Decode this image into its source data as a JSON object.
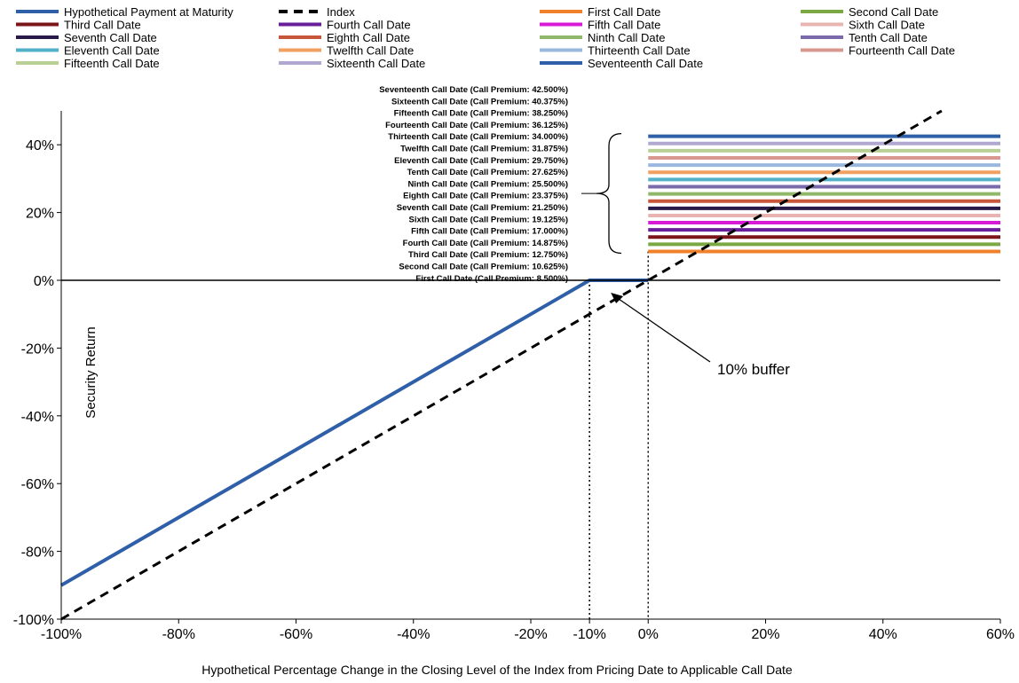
{
  "chart_data": {
    "type": "line",
    "title": "",
    "xlabel": "Hypothetical Percentage Change in the Closing Level of the Index from Pricing Date to Applicable Call Date",
    "ylabel": "Security Return",
    "xlim": [
      -100,
      60
    ],
    "ylim": [
      -100,
      50
    ],
    "x_ticks": [
      {
        "value": -100,
        "label": "-100%"
      },
      {
        "value": -80,
        "label": "-80%"
      },
      {
        "value": -60,
        "label": "-60%"
      },
      {
        "value": -40,
        "label": "-40%"
      },
      {
        "value": -20,
        "label": "-20%"
      },
      {
        "value": -10,
        "label": "-10%"
      },
      {
        "value": 0,
        "label": "0%"
      },
      {
        "value": 20,
        "label": "20%"
      },
      {
        "value": 40,
        "label": "40%"
      },
      {
        "value": 60,
        "label": "60%"
      }
    ],
    "y_ticks": [
      {
        "value": 40,
        "label": "40%"
      },
      {
        "value": 20,
        "label": "20%"
      },
      {
        "value": 0,
        "label": "0%"
      },
      {
        "value": -20,
        "label": "-20%"
      },
      {
        "value": -40,
        "label": "-40%"
      },
      {
        "value": -60,
        "label": "-60%"
      },
      {
        "value": -80,
        "label": "-80%"
      },
      {
        "value": -100,
        "label": "-100%"
      }
    ],
    "payment_series": {
      "name": "Hypothetical Payment at Maturity",
      "color": "#2e5fa8",
      "points": [
        [
          -100,
          -90
        ],
        [
          -10,
          0
        ],
        [
          0,
          0
        ]
      ]
    },
    "index_series": {
      "name": "Index",
      "color": "#000000",
      "points": [
        [
          -100,
          -100
        ],
        [
          50,
          50
        ]
      ]
    },
    "call_series": [
      {
        "name": "First Call Date",
        "premium": 8.5,
        "color": "#f0812a",
        "annotation": "First Call Date (Call Premium: 8.500%)"
      },
      {
        "name": "Second Call Date",
        "premium": 10.625,
        "color": "#7aa843",
        "annotation": "Second Call Date (Call Premium: 10.625%)"
      },
      {
        "name": "Third Call Date",
        "premium": 12.75,
        "color": "#7a1518",
        "annotation": "Third Call Date (Call Premium: 12.750%)"
      },
      {
        "name": "Fourth Call Date",
        "premium": 14.875,
        "color": "#6a1f9a",
        "annotation": "Fourth Call Date (Call Premium: 14.875%)"
      },
      {
        "name": "Fifth Call Date",
        "premium": 17.0,
        "color": "#d61ad6",
        "annotation": "Fifth Call Date (Call Premium: 17.000%)"
      },
      {
        "name": "Sixth Call Date",
        "premium": 19.125,
        "color": "#e8b4b0",
        "annotation": "Sixth Call Date (Call Premium: 19.125%)"
      },
      {
        "name": "Seventh Call Date",
        "premium": 21.25,
        "color": "#2a1a4a",
        "annotation": "Seventh Call Date (Call Premium: 21.250%)"
      },
      {
        "name": "Eighth Call Date",
        "premium": 23.375,
        "color": "#c8563a",
        "annotation": "Eighth Call Date (Call Premium: 23.375%)"
      },
      {
        "name": "Ninth Call Date",
        "premium": 25.5,
        "color": "#8fb86a",
        "annotation": "Ninth Call Date (Call Premium: 25.500%)"
      },
      {
        "name": "Tenth Call Date",
        "premium": 27.625,
        "color": "#7a6aac",
        "annotation": "Tenth Call Date (Call Premium: 27.625%)"
      },
      {
        "name": "Eleventh Call Date",
        "premium": 29.75,
        "color": "#52b0c8",
        "annotation": "Eleventh Call Date (Call Premium: 29.750%)"
      },
      {
        "name": "Twelfth Call Date",
        "premium": 31.875,
        "color": "#f0a060",
        "annotation": "Twelfth Call Date (Call Premium: 31.875%)"
      },
      {
        "name": "Thirteenth Call Date",
        "premium": 34.0,
        "color": "#9ab8de",
        "annotation": "Thirteenth Call Date (Call Premium: 34.000%)"
      },
      {
        "name": "Fourteenth Call Date",
        "premium": 36.125,
        "color": "#d89890",
        "annotation": "Fourteenth Call Date (Call Premium: 36.125%)"
      },
      {
        "name": "Fifteenth Call Date",
        "premium": 38.25,
        "color": "#b8cf96",
        "annotation": "Fifteenth Call Date (Call Premium: 38.250%)"
      },
      {
        "name": "Sixteenth Call Date",
        "premium": 40.375,
        "color": "#b0a8d0",
        "annotation": "Sixteenth Call Date (Call Premium: 40.375%)"
      },
      {
        "name": "Seventeenth Call Date",
        "premium": 42.5,
        "color": "#2e5fa8",
        "annotation": "Seventeenth Call Date (Call Premium: 42.500%)"
      }
    ],
    "call_x_range": [
      0,
      60
    ],
    "legend": [
      "Hypothetical Payment at Maturity",
      "Index",
      "First Call Date",
      "Second Call Date",
      "Third Call Date",
      "Fourth Call Date",
      "Fifth Call Date",
      "Sixth Call Date",
      "Seventh Call Date",
      "Eighth Call Date",
      "Ninth Call Date",
      "Tenth Call Date",
      "Eleventh Call Date",
      "Twelfth Call Date",
      "Thirteenth Call Date",
      "Fourteenth Call Date",
      "Fifteenth Call Date",
      "Sixteenth Call Date",
      "Seventeenth Call Date"
    ],
    "legend_colors": [
      "#2e5fa8",
      "#000000",
      "#f0812a",
      "#7aa843",
      "#7a1518",
      "#6a1f9a",
      "#d61ad6",
      "#e8b4b0",
      "#2a1a4a",
      "#c8563a",
      "#8fb86a",
      "#7a6aac",
      "#52b0c8",
      "#f0a060",
      "#9ab8de",
      "#d89890",
      "#b8cf96",
      "#b0a8d0",
      "#2e5fa8"
    ],
    "legend_placement": "top",
    "buffer_annotation": {
      "text": "10% buffer",
      "x": -10,
      "y": 0
    },
    "grid": false
  }
}
